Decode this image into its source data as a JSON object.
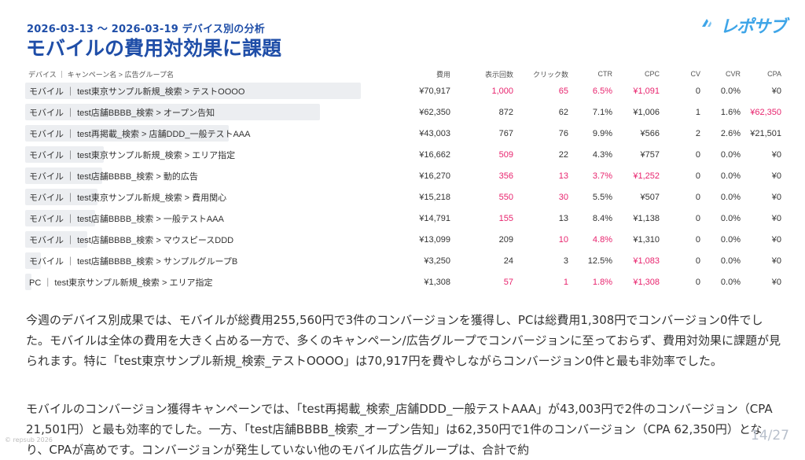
{
  "header": {
    "subtitle": "2026-03-13 ～ 2026-03-19 デバイス別の分析",
    "title": "モバイルの費用対効果に課題"
  },
  "logo": {
    "text": "レポサブ",
    "color": "#3EA5E8"
  },
  "table": {
    "columns": [
      "デバイス ｜ キャンペーン名 > 広告グループ名",
      "費用",
      "表示回数",
      "クリック数",
      "CTR",
      "CPC",
      "CV",
      "CVR",
      "CPA"
    ],
    "highlight_color": "#E8246E",
    "rows": [
      {
        "name": "モバイル ｜ test東京サンプル新規_検索 > テストOOOO",
        "cost_share": 1.0,
        "cells": [
          "¥70,917",
          "1,000",
          "65",
          "6.5%",
          "¥1,091",
          "0",
          "0.0%",
          "¥0"
        ],
        "hl": [
          false,
          true,
          true,
          true,
          true,
          false,
          false,
          false
        ]
      },
      {
        "name": "モバイル ｜ test店舗BBBB_検索 > オープン告知",
        "cost_share": 0.879,
        "cells": [
          "¥62,350",
          "872",
          "62",
          "7.1%",
          "¥1,006",
          "1",
          "1.6%",
          "¥62,350"
        ],
        "hl": [
          false,
          false,
          false,
          false,
          false,
          false,
          false,
          true
        ]
      },
      {
        "name": "モバイル ｜ test再掲載_検索 > 店舗DDD_一般テストAAA",
        "cost_share": 0.606,
        "cells": [
          "¥43,003",
          "767",
          "76",
          "9.9%",
          "¥566",
          "2",
          "2.6%",
          "¥21,501"
        ],
        "hl": [
          false,
          false,
          false,
          false,
          false,
          false,
          false,
          false
        ]
      },
      {
        "name": "モバイル ｜ test東京サンプル新規_検索 > エリア指定",
        "cost_share": 0.235,
        "cells": [
          "¥16,662",
          "509",
          "22",
          "4.3%",
          "¥757",
          "0",
          "0.0%",
          "¥0"
        ],
        "hl": [
          false,
          true,
          false,
          false,
          false,
          false,
          false,
          false
        ]
      },
      {
        "name": "モバイル ｜ test店舗BBBB_検索 > 動的広告",
        "cost_share": 0.229,
        "cells": [
          "¥16,270",
          "356",
          "13",
          "3.7%",
          "¥1,252",
          "0",
          "0.0%",
          "¥0"
        ],
        "hl": [
          false,
          true,
          true,
          true,
          true,
          false,
          false,
          false
        ]
      },
      {
        "name": "モバイル ｜ test東京サンプル新規_検索 > 費用関心",
        "cost_share": 0.215,
        "cells": [
          "¥15,218",
          "550",
          "30",
          "5.5%",
          "¥507",
          "0",
          "0.0%",
          "¥0"
        ],
        "hl": [
          false,
          true,
          true,
          false,
          false,
          false,
          false,
          false
        ]
      },
      {
        "name": "モバイル ｜ test店舗BBBB_検索 > 一般テストAAA",
        "cost_share": 0.209,
        "cells": [
          "¥14,791",
          "155",
          "13",
          "8.4%",
          "¥1,138",
          "0",
          "0.0%",
          "¥0"
        ],
        "hl": [
          false,
          true,
          false,
          false,
          false,
          false,
          false,
          false
        ]
      },
      {
        "name": "モバイル ｜ test店舗BBBB_検索 > マウスピースDDD",
        "cost_share": 0.185,
        "cells": [
          "¥13,099",
          "209",
          "10",
          "4.8%",
          "¥1,310",
          "0",
          "0.0%",
          "¥0"
        ],
        "hl": [
          false,
          false,
          true,
          true,
          false,
          false,
          false,
          false
        ]
      },
      {
        "name": "モバイル ｜ test店舗BBBB_検索 > サンプルグループB",
        "cost_share": 0.046,
        "cells": [
          "¥3,250",
          "24",
          "3",
          "12.5%",
          "¥1,083",
          "0",
          "0.0%",
          "¥0"
        ],
        "hl": [
          false,
          false,
          false,
          false,
          true,
          false,
          false,
          false
        ]
      },
      {
        "name": "PC ｜ test東京サンプル新規_検索 > エリア指定",
        "cost_share": 0.018,
        "cells": [
          "¥1,308",
          "57",
          "1",
          "1.8%",
          "¥1,308",
          "0",
          "0.0%",
          "¥0"
        ],
        "hl": [
          false,
          true,
          true,
          true,
          true,
          false,
          false,
          false
        ]
      }
    ]
  },
  "paragraphs": [
    "今週のデバイス別成果では、モバイルが総費用255,560円で3件のコンバージョンを獲得し、PCは総費用1,308円でコンバージョン0件でした。モバイルは全体の費用を大きく占める一方で、多くのキャンペーン/広告グループでコンバージョンに至っておらず、費用対効果に課題が見られます。特に「test東京サンプル新規_検索_テストOOOO」は70,917円を費やしながらコンバージョン0件と最も非効率でした。",
    "モバイルのコンバージョン獲得キャンペーンでは、「test再掲載_検索_店舗DDD_一般テストAAA」が43,003円で2件のコンバージョン（CPA 21,501円）と最も効率的でした。一方、「test店舗BBBB_検索_オープン告知」は62,350円で1件のコンバージョン（CPA 62,350円）となり、CPAが高めです。コンバージョンが発生していない他のモバイル広告グループは、合計で約"
  ],
  "footer": {
    "copyright": "© repsub 2026",
    "page": "14/27"
  }
}
